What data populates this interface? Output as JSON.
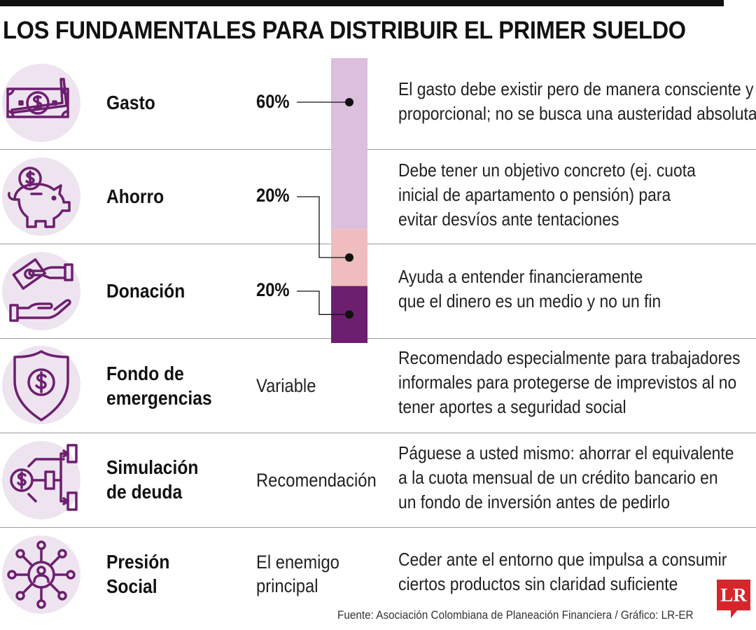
{
  "title": "LOS FUNDAMENTALES PARA DISTRIBUIR EL PRIMER SUELDO",
  "accent_color": "#6d1f6f",
  "bar_colors": [
    "#dbbfdd",
    "#efbdbe",
    "#6d1f6f"
  ],
  "rows": [
    {
      "icon": "money-bill-icon",
      "name": "Gasto",
      "value": "60%",
      "desc": [
        "El gasto debe existir pero de manera consciente y",
        "proporcional; no se busca una austeridad absoluta"
      ]
    },
    {
      "icon": "piggy-bank-icon",
      "name": "Ahorro",
      "value": "20%",
      "desc": [
        "Debe tener un objetivo concreto (ej. cuota",
        "inicial de apartamento o pensión) para",
        "evitar desvíos ante tentaciones"
      ]
    },
    {
      "icon": "giving-hand-icon",
      "name": "Donación",
      "value": "20%",
      "desc": [
        "Ayuda a entender financieramente",
        "que el dinero es un medio y no un fin"
      ]
    },
    {
      "icon": "shield-dollar-icon",
      "name": [
        "Fondo de",
        "emergencias"
      ],
      "value": "Variable",
      "desc": [
        "Recomendado especialmente para trabajadores",
        "informales para protegerse de imprevistos al no",
        "tener aportes a seguridad social"
      ]
    },
    {
      "icon": "dollar-flow-icon",
      "name": [
        "Simulación",
        "de deuda"
      ],
      "value": "Recomendación",
      "desc": [
        "Páguese a usted mismo: ahorrar el equivalente",
        "a la cuota mensual de un crédito bancario en",
        "un fondo de inversión antes de pedirlo"
      ]
    },
    {
      "icon": "social-network-icon",
      "name": [
        "Presión",
        "Social"
      ],
      "value": [
        "El enemigo",
        "principal"
      ],
      "desc": [
        "Ceder ante el entorno que impulsa a consumir",
        "ciertos productos sin claridad suficiente"
      ]
    }
  ],
  "source": "Fuente: Asociación Colombiana de Planeación Financiera / Gráfico: LR-ER",
  "logo_text": "LR",
  "chart_data": {
    "type": "bar",
    "categories": [
      "Gasto",
      "Ahorro",
      "Donación"
    ],
    "values": [
      60,
      20,
      20
    ]
  }
}
